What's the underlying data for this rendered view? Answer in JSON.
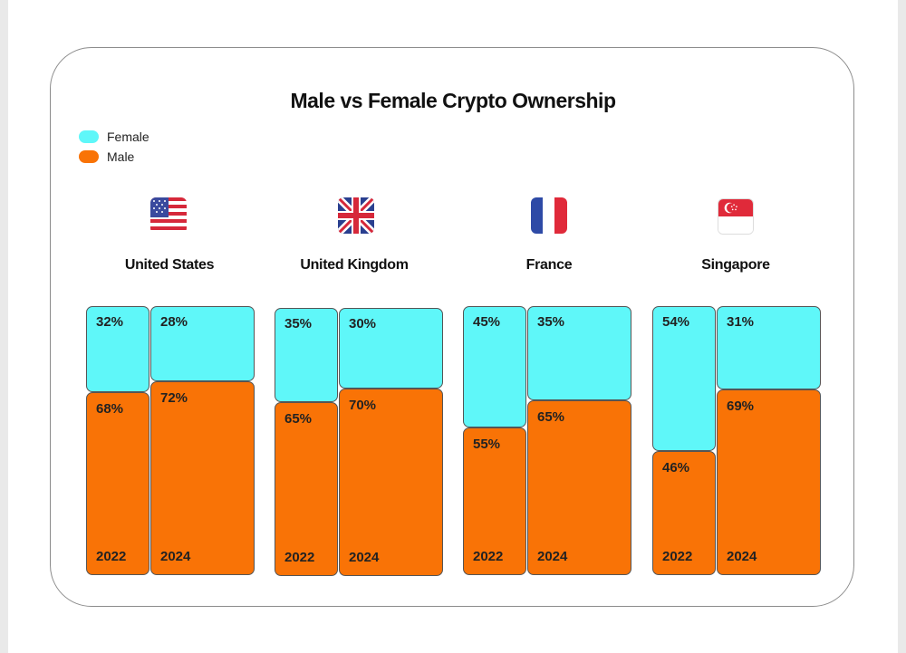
{
  "chart_data": {
    "type": "bar",
    "title": "Male vs Female Crypto Ownership",
    "legend": [
      {
        "name": "Female",
        "color": "#5ff7f9"
      },
      {
        "name": "Male",
        "color": "#f97306"
      }
    ],
    "countries": [
      {
        "name": "United States",
        "flag": "us-flag-icon",
        "bars": [
          {
            "year": "2022",
            "female": 32,
            "male": 68
          },
          {
            "year": "2024",
            "female": 28,
            "male": 72
          }
        ]
      },
      {
        "name": "United Kingdom",
        "flag": "uk-flag-icon",
        "bars": [
          {
            "year": "2022",
            "female": 35,
            "male": 65
          },
          {
            "year": "2024",
            "female": 30,
            "male": 70
          }
        ]
      },
      {
        "name": "France",
        "flag": "france-flag-icon",
        "bars": [
          {
            "year": "2022",
            "female": 45,
            "male": 55
          },
          {
            "year": "2024",
            "female": 35,
            "male": 65
          }
        ]
      },
      {
        "name": "Singapore",
        "flag": "singapore-flag-icon",
        "bars": [
          {
            "year": "2022",
            "female": 54,
            "male": 46
          },
          {
            "year": "2024",
            "female": 31,
            "male": 69
          }
        ]
      }
    ],
    "value_suffix": "%",
    "ylim": [
      0,
      100
    ]
  }
}
